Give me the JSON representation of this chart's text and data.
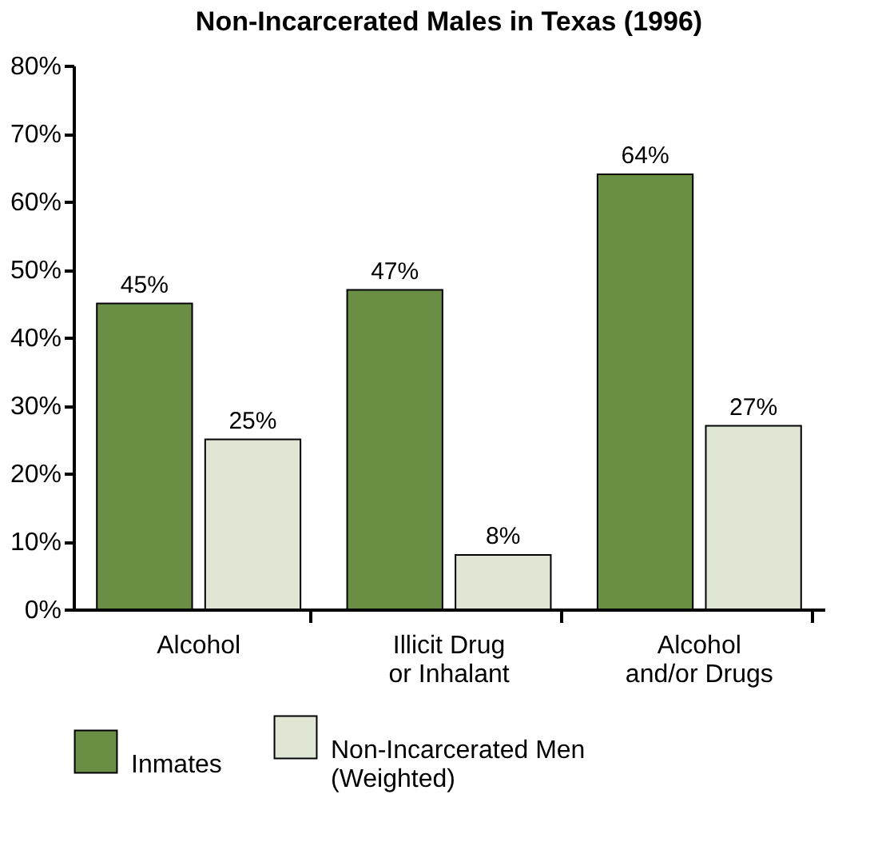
{
  "chart_data": {
    "type": "bar",
    "title": "Non-Incarcerated Males in Texas (1996)",
    "categories": [
      "Alcohol",
      "Illicit Drug\nor Inhalant",
      "Alcohol\nand/or Drugs"
    ],
    "series": [
      {
        "name": "Inmates",
        "color": "#6b8e45",
        "values": [
          45,
          47,
          64
        ],
        "value_labels": [
          "45%",
          "47%",
          "64%"
        ]
      },
      {
        "name": "Non-Incarcerated Men\n(Weighted)",
        "color": "#dfe6d4",
        "values": [
          25,
          8,
          27
        ],
        "value_labels": [
          "25%",
          "8%",
          "27%"
        ]
      }
    ],
    "ylim": [
      0,
      80
    ],
    "yticks": [
      {
        "value": 0,
        "label": "0%"
      },
      {
        "value": 10,
        "label": "10%"
      },
      {
        "value": 20,
        "label": "20%"
      },
      {
        "value": 30,
        "label": "30%"
      },
      {
        "value": 40,
        "label": "40%"
      },
      {
        "value": 50,
        "label": "50%"
      },
      {
        "value": 60,
        "label": "60%"
      },
      {
        "value": 70,
        "label": "70%"
      },
      {
        "value": 80,
        "label": "80%"
      }
    ],
    "grid": false,
    "legend": "bottom"
  }
}
